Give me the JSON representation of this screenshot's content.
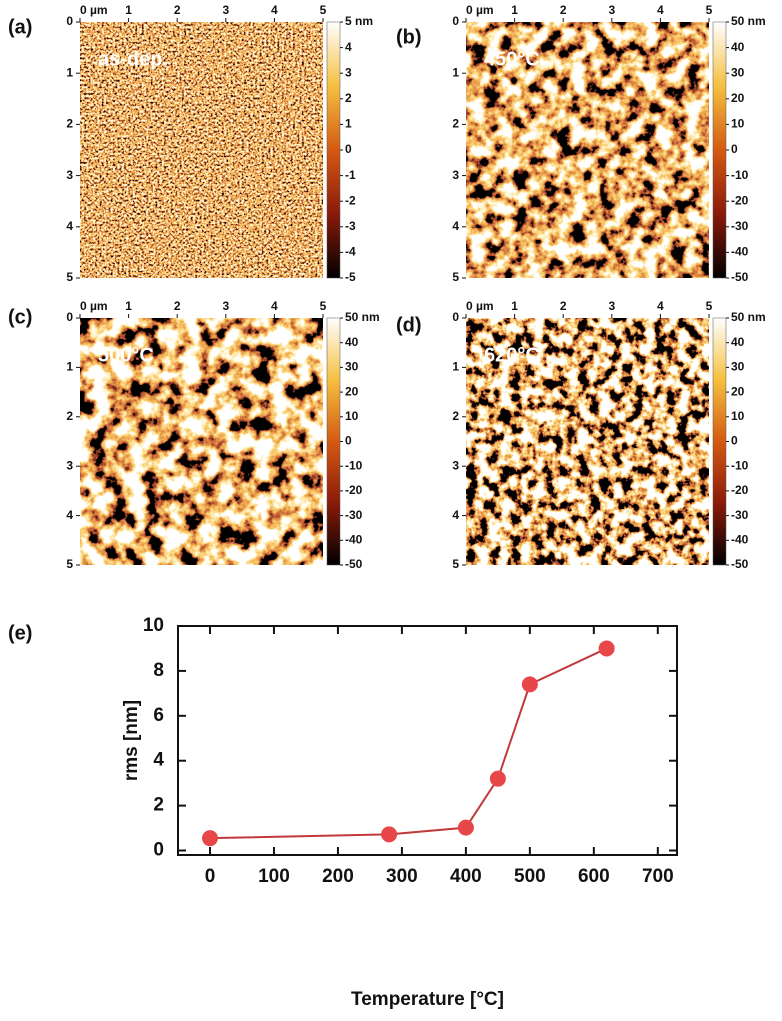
{
  "panels": [
    {
      "label": "(a)",
      "annotation": "as-dep.",
      "xlim": [
        0,
        5
      ],
      "ylim": [
        0,
        5
      ],
      "xticks": [
        {
          "value": 0,
          "label": "0 µm"
        },
        1,
        2,
        3,
        4,
        5
      ],
      "yticks": [
        0,
        1,
        2,
        3,
        4,
        5
      ],
      "clim": [
        -5,
        5
      ],
      "cticks": [
        {
          "value": 5,
          "label": "5 nm"
        },
        4,
        3,
        2,
        1,
        0,
        -1,
        -2,
        -3,
        -4,
        -5
      ]
    },
    {
      "label": "(b)",
      "annotation": "450°C",
      "xlim": [
        0,
        5
      ],
      "ylim": [
        0,
        5
      ],
      "xticks": [
        {
          "value": 0,
          "label": "0 µm"
        },
        1,
        2,
        3,
        4,
        5
      ],
      "yticks": [
        0,
        1,
        2,
        3,
        4,
        5
      ],
      "clim": [
        -50,
        50
      ],
      "cticks": [
        {
          "value": 50,
          "label": "50 nm"
        },
        40,
        30,
        20,
        10,
        0,
        -10,
        -20,
        -30,
        -40,
        -50
      ]
    },
    {
      "label": "(c)",
      "annotation": "500°C",
      "xlim": [
        0,
        5
      ],
      "ylim": [
        0,
        5
      ],
      "xticks": [
        {
          "value": 0,
          "label": "0 µm"
        },
        1,
        2,
        3,
        4,
        5
      ],
      "yticks": [
        0,
        1,
        2,
        3,
        4,
        5
      ],
      "clim": [
        -50,
        50
      ],
      "cticks": [
        {
          "value": 50,
          "label": "50 nm"
        },
        40,
        30,
        20,
        10,
        0,
        -10,
        -20,
        -30,
        -40,
        -50
      ]
    },
    {
      "label": "(d)",
      "annotation": "620°C",
      "xlim": [
        0,
        5
      ],
      "ylim": [
        0,
        5
      ],
      "xticks": [
        {
          "value": 0,
          "label": "0 µm"
        },
        1,
        2,
        3,
        4,
        5
      ],
      "yticks": [
        0,
        1,
        2,
        3,
        4,
        5
      ],
      "clim": [
        -50,
        50
      ],
      "cticks": [
        {
          "value": 50,
          "label": "50 nm"
        },
        40,
        30,
        20,
        10,
        0,
        -10,
        -20,
        -30,
        -40,
        -50
      ]
    }
  ],
  "chart_data": {
    "type": "line",
    "label": "(e)",
    "x_label": "Temperature [°C]",
    "y_label": "rms [nm]",
    "x": [
      0,
      280,
      400,
      450,
      500,
      620
    ],
    "values": [
      0.55,
      0.72,
      1.02,
      3.2,
      7.4,
      9.0
    ],
    "color": "#c0393b",
    "marker_color": "#e8474a",
    "xlim": [
      -50,
      730
    ],
    "ylim": [
      -0.2,
      10
    ],
    "xticks": [
      0,
      100,
      200,
      300,
      400,
      500,
      600,
      700
    ],
    "yticks": [
      0,
      2,
      4,
      6,
      8,
      10
    ]
  }
}
